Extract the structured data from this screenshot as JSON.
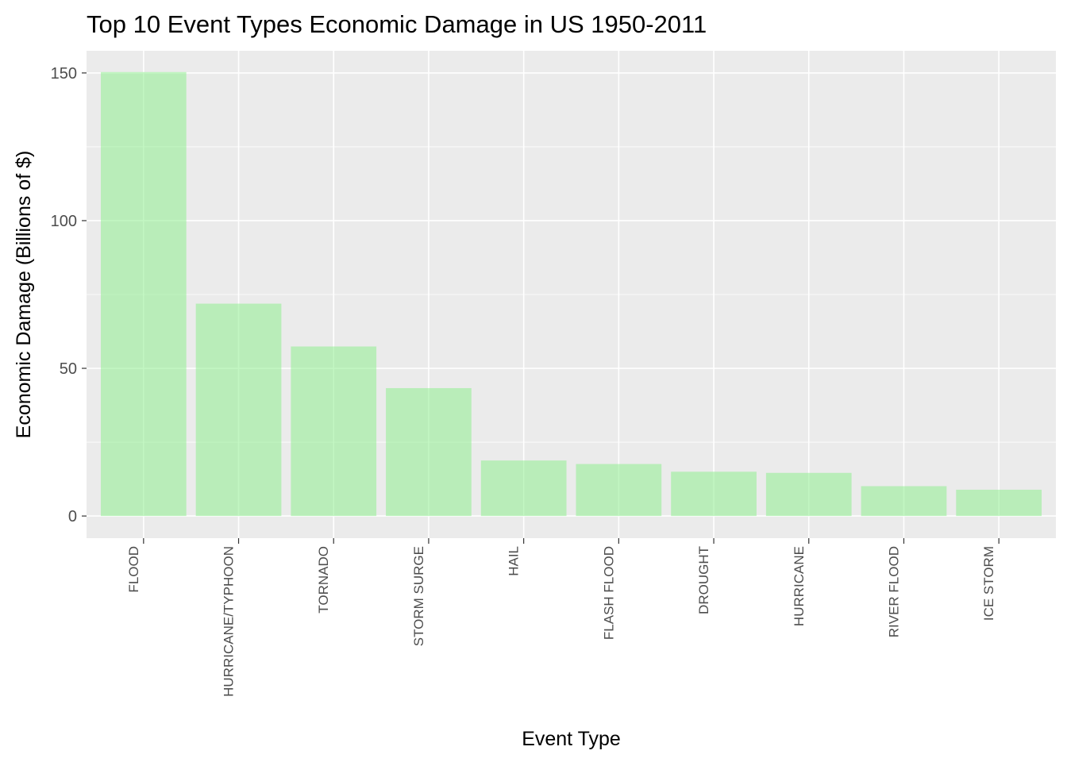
{
  "chart_data": {
    "type": "bar",
    "title": "Top 10 Event Types Economic Damage in US 1950-2011",
    "xlabel": "Event Type",
    "ylabel": "Economic Damage (Billions of $)",
    "categories": [
      "FLOOD",
      "HURRICANE/TYPHOON",
      "TORNADO",
      "STORM SURGE",
      "HAIL",
      "FLASH FLOOD",
      "DROUGHT",
      "HURRICANE",
      "RIVER FLOOD",
      "ICE STORM"
    ],
    "values": [
      150.3,
      71.9,
      57.4,
      43.3,
      18.8,
      17.6,
      15.0,
      14.6,
      10.1,
      8.9
    ],
    "ylim": [
      -7.5,
      157.5
    ],
    "yticks": [
      0,
      50,
      100,
      150
    ],
    "grid": true,
    "legend": "none",
    "colors": {
      "bar": "#90EE90",
      "bar_opacity": 0.55,
      "panel_background": "#EBEBEB",
      "gridline": "#FFFFFF"
    }
  }
}
